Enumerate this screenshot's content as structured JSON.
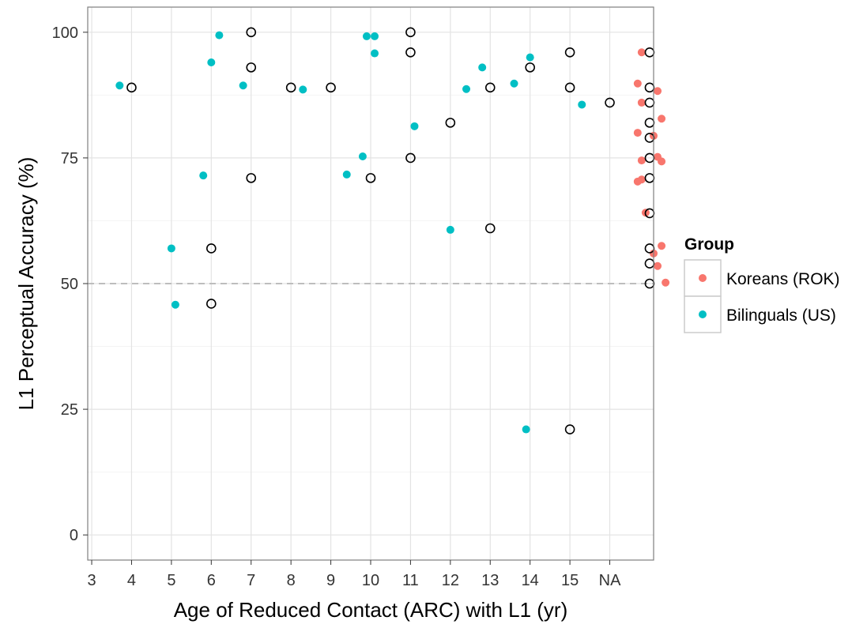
{
  "chart_data": {
    "type": "scatter",
    "title": "",
    "xlabel": "Age of Reduced Contact (ARC) with L1 (yr)",
    "ylabel": "L1 Perceptual Accuracy (%)",
    "x_categories": [
      "3",
      "4",
      "5",
      "6",
      "7",
      "8",
      "9",
      "10",
      "11",
      "12",
      "13",
      "14",
      "15",
      "NA"
    ],
    "ylim": [
      -5,
      105
    ],
    "y_ticks": [
      0,
      25,
      50,
      75,
      100
    ],
    "y_tick_labels": [
      "0",
      "25",
      "50",
      "75",
      "100"
    ],
    "reference_line": {
      "y": 50,
      "style": "dashed"
    },
    "grid": true,
    "legend": {
      "title": "Group",
      "position": "right",
      "entries": [
        {
          "label": "Koreans (ROK)",
          "color": "#F8766D"
        },
        {
          "label": "Bilinguals (US)",
          "color": "#00BFC4"
        }
      ]
    },
    "series": [
      {
        "name": "Koreans (ROK)",
        "color": "#F8766D",
        "marker": "filled",
        "points": [
          {
            "x": 13.8,
            "y": 96
          },
          {
            "x": 13.7,
            "y": 89.8
          },
          {
            "x": 14.2,
            "y": 88.3
          },
          {
            "x": 13.8,
            "y": 86
          },
          {
            "x": 14.3,
            "y": 82.8
          },
          {
            "x": 13.7,
            "y": 80
          },
          {
            "x": 14.1,
            "y": 79.4
          },
          {
            "x": 13.8,
            "y": 74.5
          },
          {
            "x": 14.3,
            "y": 74.3
          },
          {
            "x": 14.2,
            "y": 75.2
          },
          {
            "x": 13.8,
            "y": 70.7
          },
          {
            "x": 13.7,
            "y": 70.3
          },
          {
            "x": 13.9,
            "y": 64.1
          },
          {
            "x": 14.3,
            "y": 57.5
          },
          {
            "x": 14.1,
            "y": 56
          },
          {
            "x": 14.2,
            "y": 53.5
          },
          {
            "x": 14.4,
            "y": 50.2
          }
        ]
      },
      {
        "name": "Bilinguals (US)",
        "color": "#00BFC4",
        "marker": "filled",
        "points": [
          {
            "x": 0.7,
            "y": 89.4
          },
          {
            "x": 2.0,
            "y": 57
          },
          {
            "x": 2.1,
            "y": 45.8
          },
          {
            "x": 3.0,
            "y": 94
          },
          {
            "x": 3.2,
            "y": 99.4
          },
          {
            "x": 2.8,
            "y": 71.5
          },
          {
            "x": 3.8,
            "y": 89.4
          },
          {
            "x": 5.3,
            "y": 88.6
          },
          {
            "x": 6.4,
            "y": 71.7
          },
          {
            "x": 6.9,
            "y": 99.2
          },
          {
            "x": 7.1,
            "y": 99.2
          },
          {
            "x": 7.1,
            "y": 95.8
          },
          {
            "x": 6.8,
            "y": 75.3
          },
          {
            "x": 8.1,
            "y": 81.3
          },
          {
            "x": 9.0,
            "y": 60.7
          },
          {
            "x": 9.4,
            "y": 88.7
          },
          {
            "x": 9.8,
            "y": 93
          },
          {
            "x": 10.6,
            "y": 89.8
          },
          {
            "x": 11.0,
            "y": 95
          },
          {
            "x": 10.9,
            "y": 21
          },
          {
            "x": 12.3,
            "y": 85.6
          }
        ]
      },
      {
        "name": "",
        "color": "#000000",
        "marker": "open",
        "points": [
          {
            "x": 1,
            "y": 89
          },
          {
            "x": 3,
            "y": 57
          },
          {
            "x": 3,
            "y": 46
          },
          {
            "x": 4,
            "y": 100
          },
          {
            "x": 4,
            "y": 93
          },
          {
            "x": 4,
            "y": 71
          },
          {
            "x": 5,
            "y": 89
          },
          {
            "x": 6,
            "y": 89
          },
          {
            "x": 7,
            "y": 71
          },
          {
            "x": 8,
            "y": 100
          },
          {
            "x": 8,
            "y": 96
          },
          {
            "x": 8,
            "y": 75
          },
          {
            "x": 9,
            "y": 82
          },
          {
            "x": 10,
            "y": 89
          },
          {
            "x": 10,
            "y": 61
          },
          {
            "x": 11,
            "y": 93
          },
          {
            "x": 12,
            "y": 96
          },
          {
            "x": 12,
            "y": 89
          },
          {
            "x": 12,
            "y": 21
          },
          {
            "x": 13,
            "y": 86
          },
          {
            "x": 14,
            "y": 96
          },
          {
            "x": 14,
            "y": 89
          },
          {
            "x": 14,
            "y": 86
          },
          {
            "x": 14,
            "y": 82
          },
          {
            "x": 14,
            "y": 79
          },
          {
            "x": 14,
            "y": 75
          },
          {
            "x": 14,
            "y": 71
          },
          {
            "x": 14,
            "y": 64
          },
          {
            "x": 14,
            "y": 57
          },
          {
            "x": 14,
            "y": 54
          },
          {
            "x": 14,
            "y": 50
          }
        ]
      }
    ]
  }
}
